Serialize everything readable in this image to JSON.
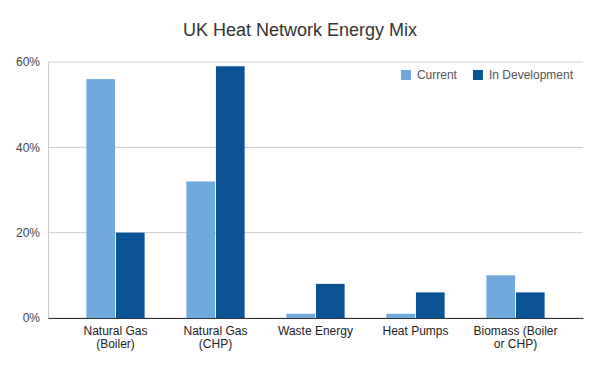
{
  "chart_data": {
    "type": "bar",
    "title": "UK Heat Network Energy Mix",
    "categories": [
      "Natural Gas (Boiler)",
      "Natural Gas (CHP)",
      "Waste Energy",
      "Heat Pumps",
      "Biomass (Boiler or CHP)"
    ],
    "series": [
      {
        "name": "Current",
        "color": "#6fa8dc",
        "values": [
          56,
          32,
          1,
          1,
          10
        ]
      },
      {
        "name": "In Development",
        "color": "#0b5394",
        "values": [
          20,
          59,
          8,
          6,
          6
        ]
      }
    ],
    "ylim": [
      0,
      60
    ],
    "yticks": [
      {
        "value": 0,
        "label": "0%"
      },
      {
        "value": 20,
        "label": "20%"
      },
      {
        "value": 40,
        "label": "40%"
      },
      {
        "value": 60,
        "label": "60%"
      }
    ],
    "grid": true,
    "legend": "top-right"
  }
}
